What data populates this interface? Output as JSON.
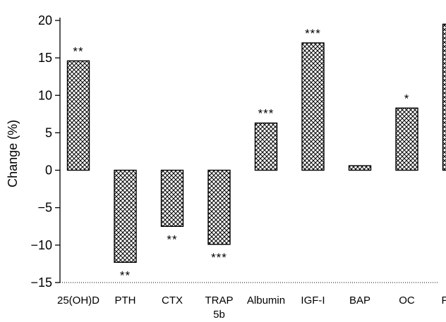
{
  "chart_data": {
    "type": "bar",
    "categories": [
      "25(OH)D",
      "PTH",
      "CTX",
      "TRAP",
      "Albumin",
      "IGF-I",
      "BAP",
      "OC",
      "PINP"
    ],
    "category_sublabels": [
      "",
      "",
      "",
      "5b",
      "",
      "",
      "",
      "",
      ""
    ],
    "values": [
      14.6,
      -12.3,
      -7.5,
      -9.9,
      6.3,
      17.0,
      0.6,
      8.3,
      19.5
    ],
    "significance": [
      "**",
      "**",
      "**",
      "***",
      "***",
      "***",
      "",
      "*",
      "***"
    ],
    "title": "",
    "xlabel": "",
    "ylabel": "Change (%)",
    "ylim": [
      -15,
      20
    ],
    "yticks": [
      -15,
      -10,
      -5,
      0,
      5,
      10,
      15,
      20
    ],
    "grid": false,
    "bar_fill": "crosshatch",
    "bar_color": "#000000",
    "baseline_style": "dotted-at-minus-15"
  }
}
